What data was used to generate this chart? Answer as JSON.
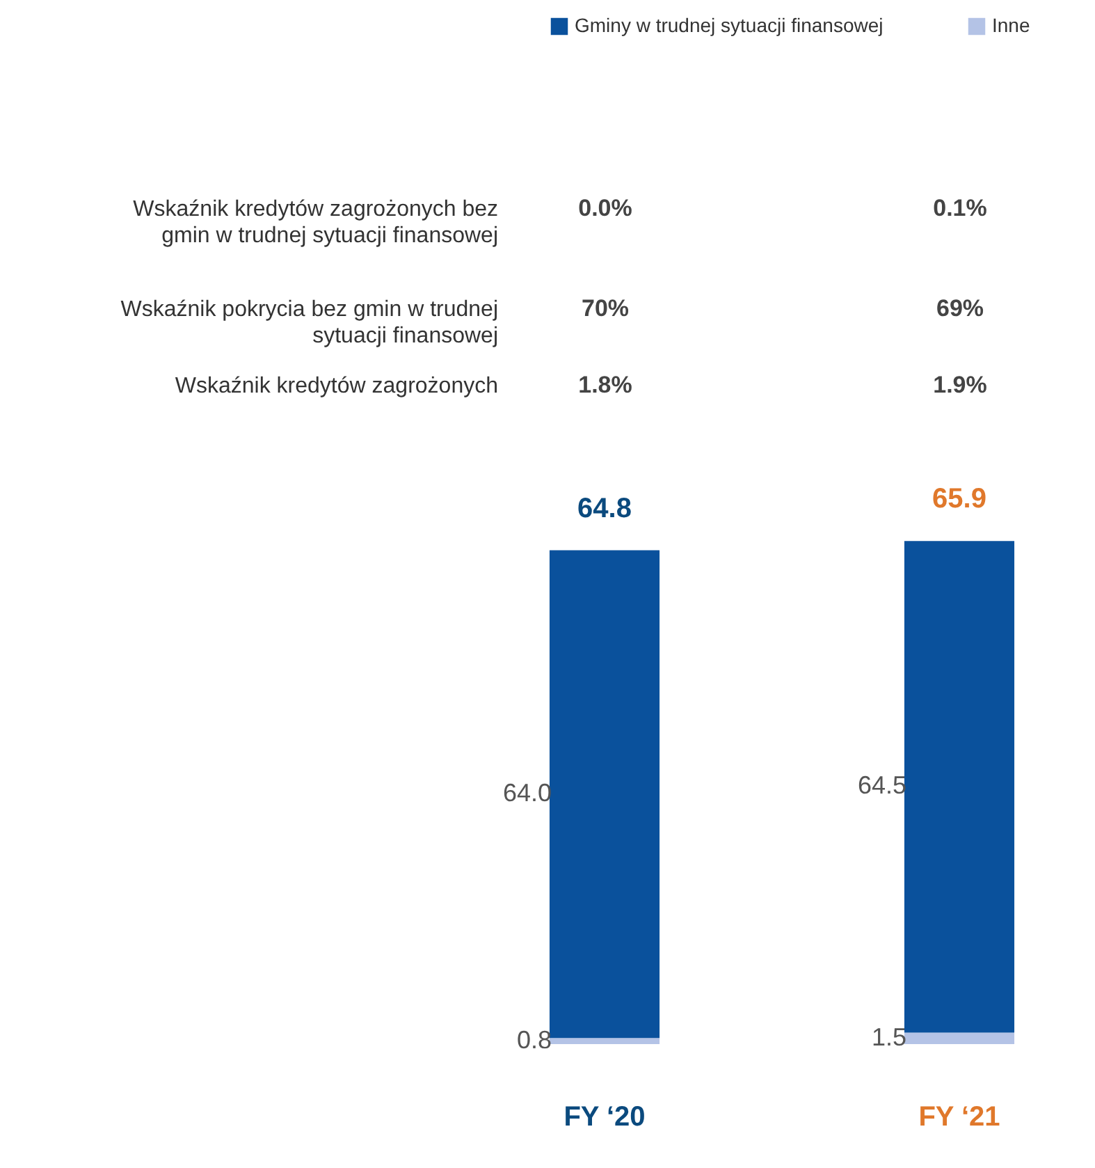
{
  "chart_data": {
    "type": "bar",
    "stacked": true,
    "legend": "top right",
    "categories": [
      "FY ‘20",
      "FY ‘21"
    ],
    "series": [
      {
        "name": "Inne",
        "color": "#b4c3e6",
        "values": [
          0.8,
          1.5
        ],
        "value_labels": [
          "0.8",
          "1.5"
        ]
      },
      {
        "name": "Gminy w trudnej sytuacji finansowej",
        "color": "#0a519c",
        "values": [
          64.0,
          64.5
        ],
        "value_labels": [
          "64.0",
          "64.5"
        ]
      }
    ],
    "totals": [
      "64.8",
      "65.9"
    ],
    "annotations": [
      "Wskaźnik kredytów zagrożonych bez gmin w trudnej sytuacji finansowej",
      "0.0%",
      "0.1%",
      "Wskaźnik pokrycia bez gmin w trudnej sytuacji finansowej",
      "70%",
      "69%",
      "Wskaźnik kredytów zagrożonych",
      "1.8%",
      "1.9%"
    ]
  }
}
